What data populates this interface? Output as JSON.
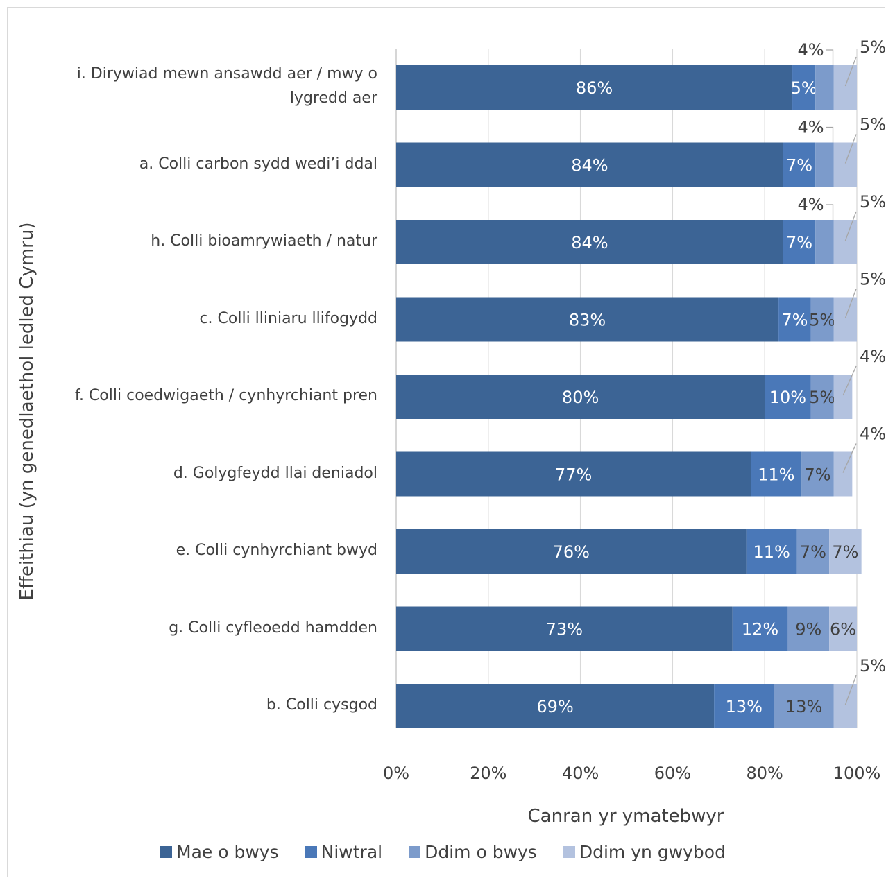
{
  "chart_data": {
    "type": "bar",
    "orientation": "horizontal",
    "stacked": true,
    "xlabel": "Canran yr ymatebwyr",
    "ylabel": "Effeithiau (yn genedlaethol ledled Cymru)",
    "xlim": [
      0,
      100
    ],
    "xticks": [
      "0%",
      "20%",
      "40%",
      "60%",
      "80%",
      "100%"
    ],
    "grid": "vertical",
    "legend_position": "bottom",
    "categories": [
      "i. Dirywiad mewn ansawdd aer / mwy o lygredd aer",
      "a. Colli carbon sydd wedi’i ddal",
      "h. Colli bioamrywiaeth / natur",
      "c. Colli lliniaru llifogydd",
      "f. Colli coedwigaeth / cynhyrchiant pren",
      "d. Golygfeydd llai deniadol",
      "e. Colli cynhyrchiant bwyd",
      "g. Colli cyfleoedd hamdden",
      "b. Colli cysgod"
    ],
    "series": [
      {
        "name": "Mae o bwys",
        "color": "#3c6495",
        "values": [
          86,
          84,
          84,
          83,
          80,
          77,
          76,
          73,
          69
        ],
        "labels": [
          "86%",
          "84%",
          "84%",
          "83%",
          "80%",
          "77%",
          "76%",
          "73%",
          "69%"
        ]
      },
      {
        "name": "Niwtral",
        "color": "#4a78b8",
        "values": [
          5,
          7,
          7,
          7,
          10,
          11,
          11,
          12,
          13
        ],
        "labels": [
          "5%",
          "7%",
          "7%",
          "7%",
          "10%",
          "11%",
          "11%",
          "12%",
          "13%"
        ]
      },
      {
        "name": "Ddim o bwys",
        "color": "#7c9bcb",
        "values": [
          4,
          4,
          4,
          5,
          5,
          7,
          7,
          9,
          13
        ],
        "labels": [
          "4%",
          "4%",
          "4%",
          "5%",
          "5%",
          "7%",
          "7%",
          "9%",
          "13%"
        ]
      },
      {
        "name": "Ddim yn gwybod",
        "color": "#b3c2df",
        "values": [
          5,
          5,
          5,
          5,
          4,
          4,
          7,
          6,
          5
        ],
        "labels": [
          "5%",
          "5%",
          "5%",
          "5%",
          "4%",
          "4%",
          "7%",
          "6%",
          "5%"
        ]
      }
    ]
  }
}
